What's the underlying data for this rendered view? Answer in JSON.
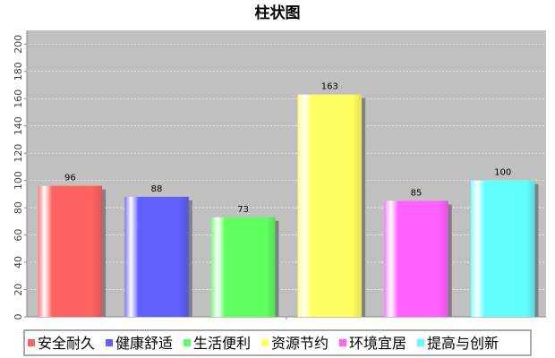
{
  "chart_data": {
    "type": "bar",
    "title": "柱状图",
    "categories": [
      "安全耐久",
      "健康舒适",
      "生活便利",
      "资源节约",
      "环境宜居",
      "提高与创新"
    ],
    "values": [
      96,
      88,
      73,
      163,
      85,
      100
    ],
    "colors": [
      "#ff6060",
      "#6060ff",
      "#60ff60",
      "#ffff60",
      "#ff60ff",
      "#60ffff"
    ],
    "ylim": [
      0,
      210
    ],
    "yticks": [
      0,
      20,
      40,
      60,
      80,
      100,
      120,
      140,
      160,
      180,
      200
    ],
    "grid": true,
    "legend_position": "bottom",
    "plot_background": "#c0c0c0"
  }
}
